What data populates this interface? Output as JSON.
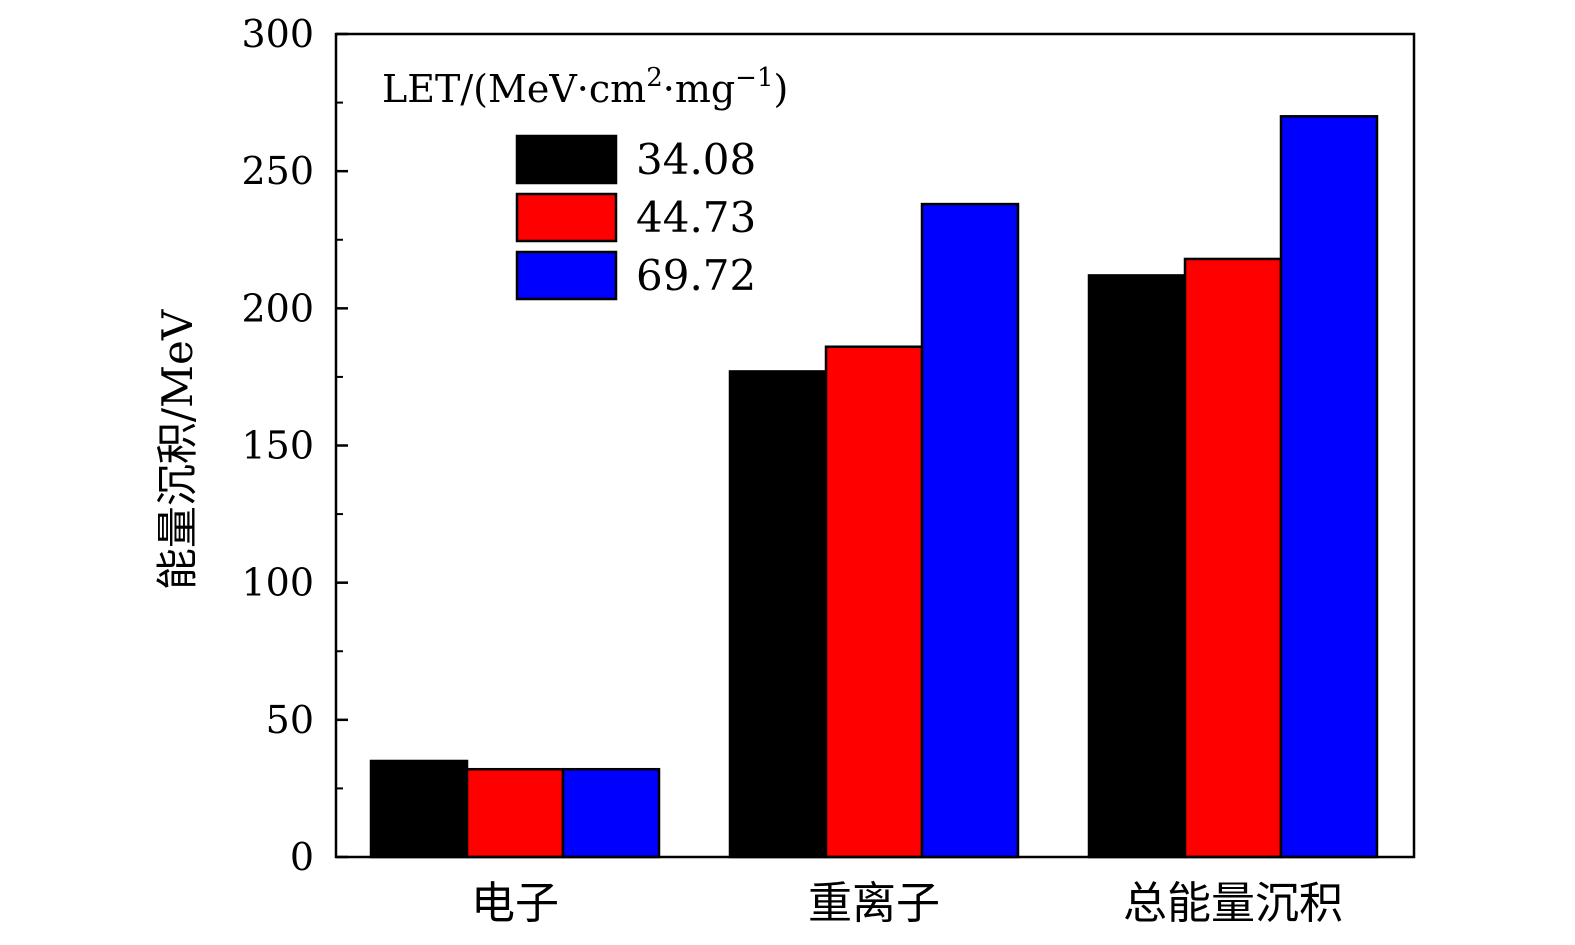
{
  "chart_data": {
    "type": "bar",
    "title": "",
    "xlabel": "",
    "ylabel": "能量沉积/MeV",
    "ylim": [
      0,
      300
    ],
    "yticks": [
      0,
      50,
      100,
      150,
      200,
      250,
      300
    ],
    "categories": [
      "电子",
      "重离子",
      "总能量沉积"
    ],
    "legend_title": {
      "prefix": "LET/(MeV·cm",
      "sup1": "2",
      "mid": "·mg",
      "sup2": "−1",
      "suffix": ")"
    },
    "legend_position": "top-left",
    "grid": false,
    "series": [
      {
        "name": "34.08",
        "color": "#000000",
        "values": [
          35,
          177,
          212
        ]
      },
      {
        "name": "44.73",
        "color": "#ff0000",
        "values": [
          32,
          186,
          218
        ]
      },
      {
        "name": "69.72",
        "color": "#0000ff",
        "values": [
          32,
          238,
          270
        ]
      }
    ]
  }
}
